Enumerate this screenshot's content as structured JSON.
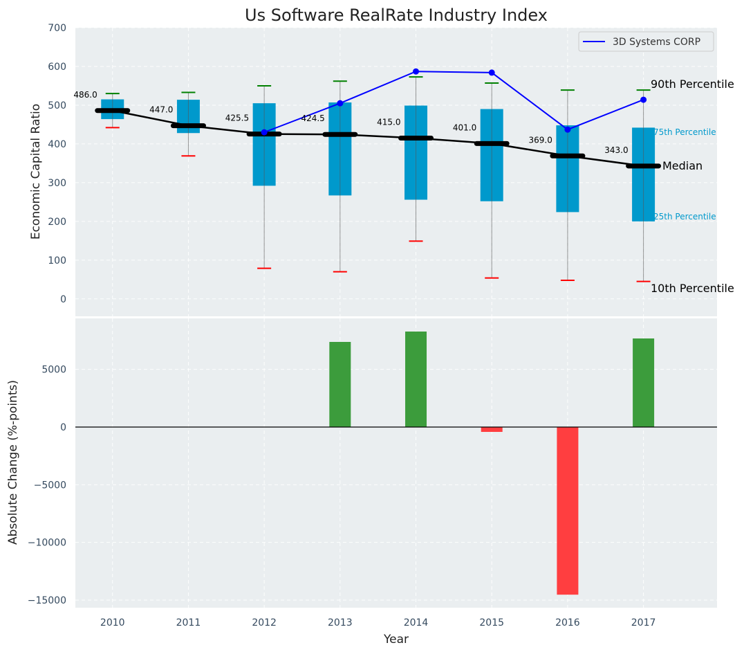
{
  "chart_data": [
    {
      "type": "box",
      "title": "Us Software RealRate Industry Index",
      "xlabel": "",
      "ylabel": "Economic Capital Ratio",
      "ylim": [
        -45,
        700
      ],
      "xlim": [
        2009.51,
        2017.97
      ],
      "yticks": [
        0,
        100,
        200,
        300,
        400,
        500,
        600,
        700
      ],
      "grid": true,
      "categories": [
        2010,
        2011,
        2012,
        2013,
        2014,
        2015,
        2016,
        2017
      ],
      "series": [
        {
          "name": "10th Percentile",
          "values": [
            442,
            369,
            79,
            70,
            149,
            54,
            48,
            45
          ]
        },
        {
          "name": "25th Percentile",
          "values": [
            464,
            428,
            292,
            267,
            256,
            252,
            224,
            200
          ]
        },
        {
          "name": "Median",
          "values": [
            486.0,
            447.0,
            425.5,
            424.5,
            415.0,
            401.0,
            369.0,
            343.0
          ]
        },
        {
          "name": "75th Percentile",
          "values": [
            515,
            514,
            505,
            507,
            499,
            490,
            448,
            442
          ]
        },
        {
          "name": "90th Percentile",
          "values": [
            530,
            533,
            550,
            562,
            573,
            557,
            539,
            539
          ]
        },
        {
          "name": "3D Systems CORP",
          "type": "line",
          "x": [
            2012,
            2013,
            2014,
            2015,
            2016,
            2017
          ],
          "values": [
            430,
            505,
            587,
            584,
            437,
            514
          ]
        }
      ],
      "median_labels": [
        "486.0",
        "447.0",
        "425.5",
        "424.5",
        "415.0",
        "401.0",
        "369.0",
        "343.0"
      ],
      "annotations": {
        "p90": "90th Percentile",
        "p75": "75th Percentile",
        "median": "Median",
        "p25": "25th Percentile",
        "p10": "10th Percentile"
      },
      "legend": {
        "position": "top-right",
        "entries": [
          "3D Systems CORP"
        ]
      },
      "colors": {
        "box": "#0099cc",
        "median": "#000000",
        "company_line": "#0000ff",
        "whisker_top": "#008000",
        "whisker_bottom": "#ff0000",
        "whisker_line": "#808080",
        "background": "#eaeef0"
      }
    },
    {
      "type": "bar",
      "xlabel": "Year",
      "ylabel": "Absolute Change (%-points)",
      "ylim": [
        -15660,
        9420
      ],
      "xlim": [
        2009.51,
        2017.97
      ],
      "yticks": [
        -15000,
        -10000,
        -5000,
        0,
        5000
      ],
      "ytick_labels": [
        "−15000",
        "−10000",
        "−5000",
        "0",
        "5000"
      ],
      "xticks": [
        2010,
        2011,
        2012,
        2013,
        2014,
        2015,
        2016,
        2017
      ],
      "xtick_labels": [
        "2010",
        "2011",
        "2012",
        "2013",
        "2014",
        "2015",
        "2016",
        "2017"
      ],
      "grid": true,
      "categories": [
        2010,
        2011,
        2012,
        2013,
        2014,
        2015,
        2016,
        2017
      ],
      "values": [
        0,
        0,
        0,
        7380,
        8280,
        -420,
        -14530,
        7680
      ],
      "colors": {
        "positive": "#3c9c3c",
        "negative": "#ff3e40"
      }
    }
  ],
  "top_yticks_labels": [
    "0",
    "100",
    "200",
    "300",
    "400",
    "500",
    "600",
    "700"
  ]
}
